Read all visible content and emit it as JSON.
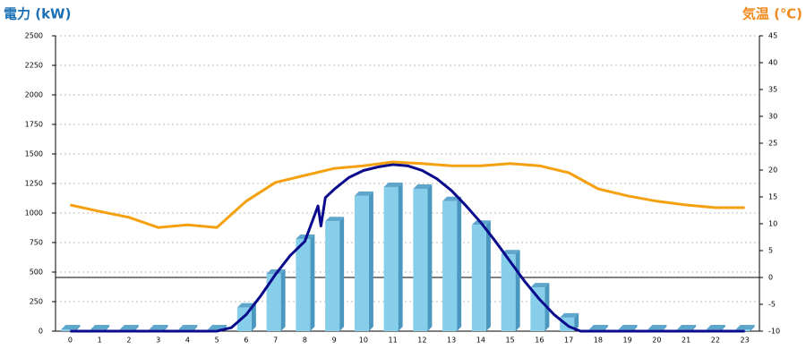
{
  "chart_data": {
    "type": "combo",
    "title": "電力 (kW)",
    "y2_title": "気温 (℃)",
    "categories": [
      "0",
      "1",
      "2",
      "3",
      "4",
      "5",
      "6",
      "7",
      "8",
      "9",
      "10",
      "11",
      "12",
      "13",
      "14",
      "15",
      "16",
      "17",
      "18",
      "19",
      "20",
      "21",
      "22",
      "23"
    ],
    "ylim": [
      0,
      2500
    ],
    "yticks": [
      0,
      250,
      500,
      750,
      1000,
      1250,
      1500,
      1750,
      2000,
      2250,
      2500
    ],
    "y2lim": [
      -10,
      45
    ],
    "y2ticks": [
      -10,
      -5,
      0,
      5,
      10,
      15,
      20,
      25,
      30,
      35,
      40,
      45
    ],
    "grid": true,
    "series": [
      {
        "type": "bar",
        "color": "#87ceeb",
        "values": [
          0,
          0,
          0,
          0,
          0,
          0,
          200,
          485,
          780,
          930,
          1145,
          1220,
          1205,
          1100,
          900,
          650,
          370,
          115,
          0,
          0,
          0,
          0,
          0,
          0
        ]
      },
      {
        "type": "line",
        "color": "#0a0a8c",
        "x": [
          0,
          1,
          2,
          3,
          4,
          5,
          5.5,
          6,
          6.5,
          7,
          7.5,
          8,
          8.45,
          8.55,
          8.7,
          9,
          9.5,
          10,
          10.5,
          11,
          11.5,
          12,
          12.5,
          13,
          13.5,
          14,
          14.5,
          15,
          15.5,
          16,
          16.5,
          17,
          17.4,
          18,
          19,
          20,
          21,
          22,
          23
        ],
        "values": [
          0,
          0,
          0,
          0,
          0,
          0,
          30,
          140,
          300,
          480,
          640,
          760,
          1060,
          890,
          1130,
          1200,
          1300,
          1360,
          1390,
          1410,
          1400,
          1360,
          1290,
          1190,
          1060,
          920,
          760,
          590,
          420,
          270,
          140,
          40,
          0,
          0,
          0,
          0,
          0,
          0,
          0
        ]
      },
      {
        "type": "line",
        "axis": "y2",
        "color": "#f5a00f",
        "values": [
          13.5,
          12.3,
          11.2,
          9.3,
          9.8,
          9.3,
          14.2,
          17.7,
          19,
          20.3,
          20.8,
          21.5,
          21.2,
          20.8,
          20.8,
          21.2,
          20.8,
          19.5,
          16.5,
          15.2,
          14.2,
          13.5,
          13,
          13
        ]
      }
    ]
  }
}
